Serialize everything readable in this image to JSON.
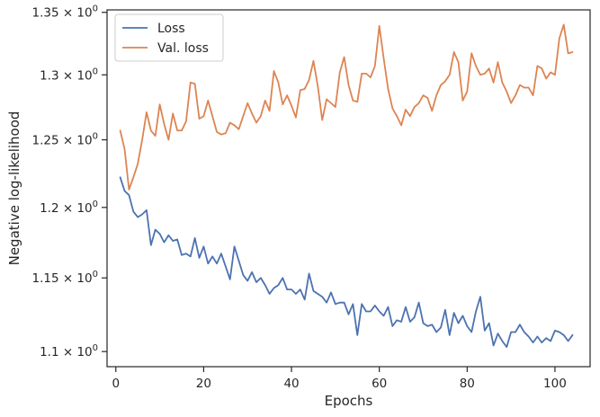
{
  "chart_data": {
    "type": "line",
    "xlabel": "Epochs",
    "ylabel": "Negative log-likelihood",
    "xlim": [
      -2,
      108
    ],
    "ylim": [
      1.09,
      1.352
    ],
    "y_scale": "log",
    "grid": false,
    "legend_position": "top-left",
    "x_ticks": [
      0,
      20,
      40,
      60,
      80,
      100
    ],
    "x_tick_labels": [
      "0",
      "20",
      "40",
      "60",
      "80",
      "100"
    ],
    "y_ticks": [
      1.1,
      1.15,
      1.2,
      1.25,
      1.3,
      1.35
    ],
    "y_tick_base": [
      "1.1",
      "1.15",
      "1.2",
      "1.25",
      "1.3",
      "1.35"
    ],
    "y_tick_suffix": "× 10",
    "y_tick_exp": "0",
    "x": [
      1,
      2,
      3,
      4,
      5,
      6,
      7,
      8,
      9,
      10,
      11,
      12,
      13,
      14,
      15,
      16,
      17,
      18,
      19,
      20,
      21,
      22,
      23,
      24,
      25,
      26,
      27,
      28,
      29,
      30,
      31,
      32,
      33,
      34,
      35,
      36,
      37,
      38,
      39,
      40,
      41,
      42,
      43,
      44,
      45,
      46,
      47,
      48,
      49,
      50,
      51,
      52,
      53,
      54,
      55,
      56,
      57,
      58,
      59,
      60,
      61,
      62,
      63,
      64,
      65,
      66,
      67,
      68,
      69,
      70,
      71,
      72,
      73,
      74,
      75,
      76,
      77,
      78,
      79,
      80,
      81,
      82,
      83,
      84,
      85,
      86,
      87,
      88,
      89,
      90,
      91,
      92,
      93,
      94,
      95,
      96,
      97,
      98,
      99,
      100,
      101,
      102,
      103,
      104
    ],
    "series": [
      {
        "name": "Loss",
        "color": "#4c72b0",
        "values": [
          1.222,
          1.212,
          1.209,
          1.197,
          1.193,
          1.195,
          1.198,
          1.173,
          1.184,
          1.181,
          1.175,
          1.18,
          1.176,
          1.177,
          1.166,
          1.167,
          1.165,
          1.178,
          1.164,
          1.172,
          1.16,
          1.165,
          1.16,
          1.167,
          1.158,
          1.149,
          1.172,
          1.162,
          1.152,
          1.148,
          1.154,
          1.147,
          1.15,
          1.145,
          1.139,
          1.143,
          1.145,
          1.15,
          1.142,
          1.142,
          1.139,
          1.142,
          1.135,
          1.153,
          1.141,
          1.139,
          1.137,
          1.133,
          1.14,
          1.132,
          1.133,
          1.133,
          1.125,
          1.132,
          1.111,
          1.132,
          1.127,
          1.127,
          1.131,
          1.127,
          1.124,
          1.13,
          1.117,
          1.121,
          1.12,
          1.13,
          1.12,
          1.123,
          1.133,
          1.119,
          1.117,
          1.118,
          1.113,
          1.116,
          1.128,
          1.111,
          1.126,
          1.119,
          1.124,
          1.117,
          1.113,
          1.127,
          1.137,
          1.114,
          1.119,
          1.104,
          1.112,
          1.107,
          1.103,
          1.113,
          1.113,
          1.118,
          1.113,
          1.11,
          1.106,
          1.11,
          1.106,
          1.109,
          1.107,
          1.114,
          1.113,
          1.111,
          1.107,
          1.111
        ]
      },
      {
        "name": "Val. loss",
        "color": "#dd8452",
        "values": [
          1.257,
          1.243,
          1.213,
          1.222,
          1.232,
          1.25,
          1.271,
          1.257,
          1.253,
          1.277,
          1.262,
          1.25,
          1.27,
          1.257,
          1.257,
          1.264,
          1.294,
          1.293,
          1.266,
          1.268,
          1.28,
          1.268,
          1.256,
          1.254,
          1.255,
          1.263,
          1.261,
          1.258,
          1.268,
          1.278,
          1.27,
          1.263,
          1.268,
          1.28,
          1.272,
          1.303,
          1.294,
          1.277,
          1.284,
          1.276,
          1.267,
          1.288,
          1.289,
          1.296,
          1.311,
          1.291,
          1.265,
          1.281,
          1.278,
          1.275,
          1.302,
          1.314,
          1.292,
          1.28,
          1.279,
          1.301,
          1.301,
          1.298,
          1.307,
          1.339,
          1.313,
          1.289,
          1.274,
          1.268,
          1.261,
          1.273,
          1.268,
          1.275,
          1.278,
          1.284,
          1.282,
          1.272,
          1.284,
          1.292,
          1.295,
          1.3,
          1.318,
          1.31,
          1.28,
          1.287,
          1.317,
          1.307,
          1.3,
          1.301,
          1.305,
          1.294,
          1.31,
          1.294,
          1.287,
          1.278,
          1.284,
          1.292,
          1.29,
          1.29,
          1.284,
          1.307,
          1.305,
          1.297,
          1.302,
          1.3,
          1.329,
          1.34,
          1.317,
          1.318
        ]
      }
    ]
  }
}
